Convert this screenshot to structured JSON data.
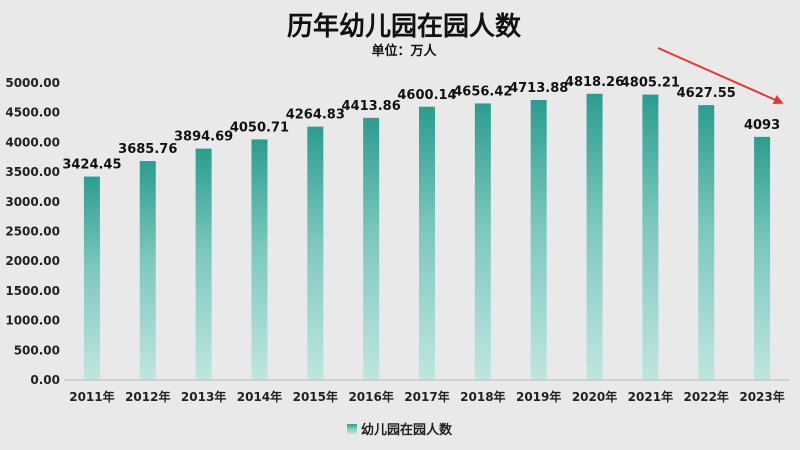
{
  "chart_data": {
    "type": "bar",
    "title": "历年幼儿园在园人数",
    "subtitle": "单位：万人",
    "categories": [
      "2011年",
      "2012年",
      "2013年",
      "2014年",
      "2015年",
      "2016年",
      "2017年",
      "2018年",
      "2019年",
      "2020年",
      "2021年",
      "2022年",
      "2023年"
    ],
    "series": [
      {
        "name": "幼儿园在园人数",
        "values": [
          3424.45,
          3685.76,
          3894.69,
          4050.71,
          4264.83,
          4413.86,
          4600.14,
          4656.42,
          4713.88,
          4818.26,
          4805.21,
          4627.55,
          4093
        ]
      }
    ],
    "data_labels": [
      "3424.45",
      "3685.76",
      "3894.69",
      "4050.71",
      "4264.83",
      "4413.86",
      "4600.14",
      "4656.42",
      "4713.88",
      "4818.26",
      "4805.21",
      "4627.55",
      "4093"
    ],
    "y_ticks": [
      "0.00",
      "500.00",
      "1000.00",
      "1500.00",
      "2000.00",
      "2500.00",
      "3000.00",
      "3500.00",
      "4000.00",
      "4500.00",
      "5000.00"
    ],
    "ylim": [
      0,
      5000
    ],
    "grid": false,
    "legend_position": "bottom",
    "colors": {
      "bar_top": "#2a9d8f",
      "bar_bottom": "#bfe6e0",
      "arrow": "#e8392f"
    }
  }
}
